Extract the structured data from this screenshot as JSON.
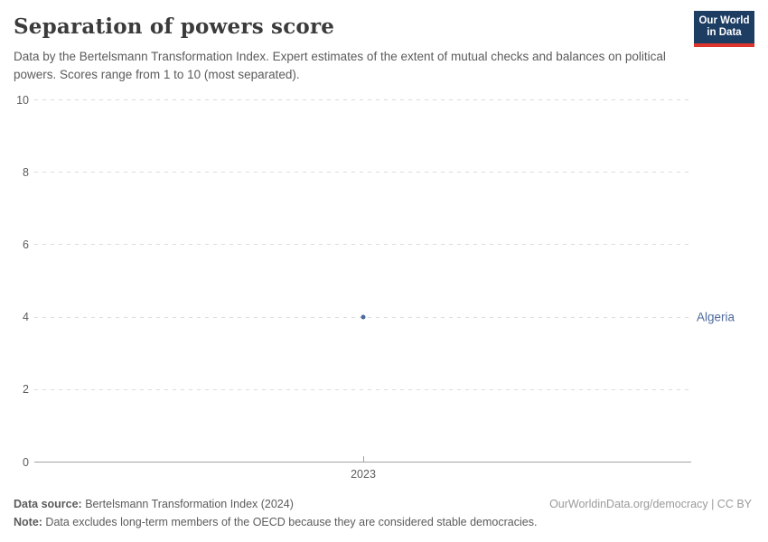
{
  "header": {
    "title": "Separation of powers score",
    "subtitle": "Data by the Bertelsmann Transformation Index. Expert estimates of the extent of mutual checks and balances on political powers. Scores range from 1 to 10 (most separated).",
    "logo": {
      "line1": "Our World",
      "line2": "in Data",
      "bg_color": "#1d3d63",
      "accent_color": "#dc352c"
    }
  },
  "chart_data": {
    "type": "scatter",
    "title": "Separation of powers score",
    "xlabel": "",
    "ylabel": "",
    "ylim": [
      0,
      10
    ],
    "yticks": [
      0,
      2,
      4,
      6,
      8,
      10
    ],
    "xticks": [
      "2023"
    ],
    "grid": "horizontal-dashed",
    "legend_position": "right-of-point",
    "axis_color": "#a3a3a3",
    "gridline_color": "#dcdcdc",
    "series": [
      {
        "name": "Algeria",
        "color": "#4c6a9c",
        "points": [
          {
            "x": 2023,
            "y": 4
          }
        ]
      }
    ]
  },
  "footer": {
    "datasource_label": "Data source:",
    "datasource_value": " Bertelsmann Transformation Index (2024)",
    "attribution": "OurWorldinData.org/democracy | CC BY",
    "note_label": "Note:",
    "note_value": " Data excludes long-term members of the OECD because they are considered stable democracies."
  }
}
